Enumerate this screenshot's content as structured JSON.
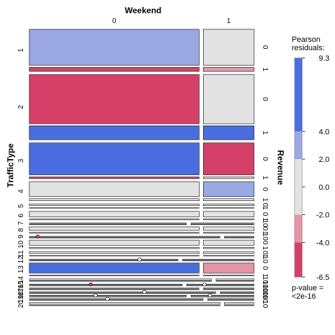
{
  "chart_data": {
    "type": "mosaic",
    "top_axis": {
      "title": "Weekend",
      "levels": [
        "0",
        "1"
      ]
    },
    "left_axis": {
      "title": "TrafficType",
      "levels": [
        "1",
        "2",
        "3",
        "4",
        "5",
        "6",
        "7",
        "8",
        "9",
        "10",
        "11",
        "12",
        "13",
        "14",
        "15",
        "16",
        "17",
        "18",
        "19",
        "20"
      ]
    },
    "right_axis": {
      "title": "Revenue",
      "levels": [
        "0",
        "1"
      ]
    },
    "weekend_split": 0.77,
    "traffic_share": [
      20,
      31,
      17,
      9,
      2,
      4,
      0.3,
      3,
      0.3,
      4,
      2,
      0.3,
      6,
      1,
      0.3,
      0.3,
      0.1,
      0.1,
      0.3,
      1.5
    ],
    "revenue1_share": [
      0.1,
      0.22,
      0.05,
      0.12,
      0.2,
      0.12,
      0.2,
      0.15,
      0.05,
      0.2,
      0.2,
      0.1,
      0.05,
      0.05,
      0.05,
      0.1,
      0.1,
      0.1,
      0.1,
      0.25
    ],
    "residuals": [
      {
        "t": 1,
        "w": 0,
        "r": 0,
        "value": 2.5
      },
      {
        "t": 1,
        "w": 0,
        "r": 1,
        "value": -4.5
      },
      {
        "t": 1,
        "w": 1,
        "r": 0,
        "value": 0.5
      },
      {
        "t": 1,
        "w": 1,
        "r": 1,
        "value": -2.5
      },
      {
        "t": 2,
        "w": 0,
        "r": 0,
        "value": -5.5
      },
      {
        "t": 2,
        "w": 0,
        "r": 1,
        "value": 9.3
      },
      {
        "t": 2,
        "w": 1,
        "r": 0,
        "value": 0.4
      },
      {
        "t": 2,
        "w": 1,
        "r": 1,
        "value": 5.0
      },
      {
        "t": 3,
        "w": 0,
        "r": 0,
        "value": 5.5
      },
      {
        "t": 3,
        "w": 0,
        "r": 1,
        "value": -6.5
      },
      {
        "t": 3,
        "w": 1,
        "r": 0,
        "value": -5.0
      },
      {
        "t": 3,
        "w": 1,
        "r": 1,
        "value": -1.0
      },
      {
        "t": 4,
        "w": 0,
        "r": 0,
        "value": 0.8
      },
      {
        "t": 4,
        "w": 0,
        "r": 1,
        "value": 0.5
      },
      {
        "t": 4,
        "w": 1,
        "r": 0,
        "value": 2.5
      },
      {
        "t": 4,
        "w": 1,
        "r": 1,
        "value": 0.5
      },
      {
        "t": 9,
        "w": 0,
        "r": 0,
        "value": -1.0
      },
      {
        "t": 9,
        "w": 0,
        "r": 1,
        "value": -4.5
      },
      {
        "t": 13,
        "w": 0,
        "r": 0,
        "value": 5.0
      },
      {
        "t": 13,
        "w": 0,
        "r": 1,
        "value": 0.0
      },
      {
        "t": 13,
        "w": 1,
        "r": 0,
        "value": -2.5
      },
      {
        "t": 13,
        "w": 1,
        "r": 1,
        "value": 0.0
      }
    ],
    "legend": {
      "title_line1": "Pearson",
      "title_line2": "residuals:",
      "ticks": [
        "9.3",
        "4.0",
        "2.0",
        "0.0",
        "-2.0",
        "-4.0",
        "-6.5"
      ],
      "tick_values": [
        9.3,
        4.0,
        2.0,
        0.0,
        -2.0,
        -4.0,
        -6.5
      ],
      "range": [
        -6.5,
        9.3
      ],
      "p_value_line1": "p-value =",
      "p_value_line2": "<2e-16"
    },
    "colors": {
      "strong_positive": "#4a6ee0",
      "positive": "#9ba8e4",
      "neutral": "#e2e2e2",
      "negative": "#e596a6",
      "strong_negative": "#d54069",
      "outline": "#222222"
    }
  }
}
